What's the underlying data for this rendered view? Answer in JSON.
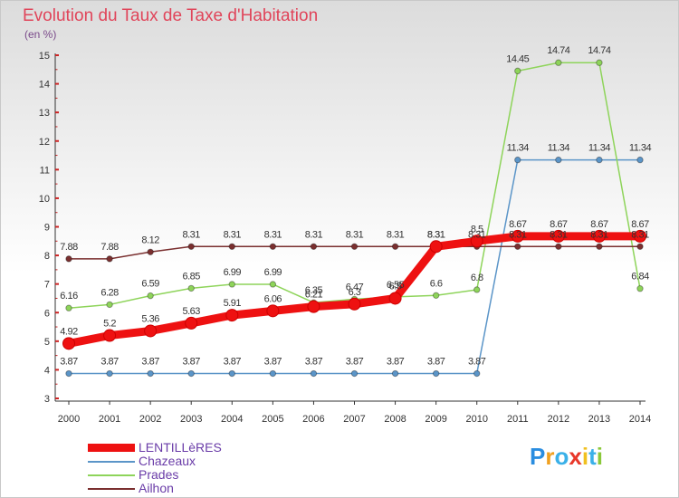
{
  "title": "Evolution du Taux de Taxe d'Habitation",
  "unit": "(en %)",
  "logo": "Proxiti",
  "chart_data": {
    "type": "line",
    "title": "Evolution du Taux de Taxe d'Habitation",
    "ylabel": "(en %)",
    "xlabel": "",
    "ylim": [
      3,
      15
    ],
    "yticks": [
      3,
      4,
      5,
      6,
      7,
      8,
      9,
      10,
      11,
      12,
      13,
      14,
      15
    ],
    "grid": false,
    "legend_position": "bottom-left",
    "x": [
      2000,
      2001,
      2002,
      2003,
      2004,
      2005,
      2006,
      2007,
      2008,
      2009,
      2010,
      2011,
      2012,
      2013,
      2014
    ],
    "series": [
      {
        "name": "LENTILLèRES",
        "color": "#ee1111",
        "emphasis": true,
        "values": [
          4.92,
          5.2,
          5.36,
          5.63,
          5.91,
          6.06,
          6.21,
          6.3,
          6.5,
          8.31,
          8.5,
          8.67,
          8.67,
          8.67,
          8.67
        ],
        "labels": [
          "4.92",
          "5.2",
          "5.36",
          "5.63",
          "5.91",
          "6.06",
          "6.21",
          "6.3",
          "6.5",
          "8.31",
          "8.5",
          "8.67",
          "8.67",
          "8.67",
          "8.67"
        ]
      },
      {
        "name": "Chazeaux",
        "color": "#5b95c8",
        "emphasis": false,
        "values": [
          3.87,
          3.87,
          3.87,
          3.87,
          3.87,
          3.87,
          3.87,
          3.87,
          3.87,
          3.87,
          3.87,
          11.34,
          11.34,
          11.34,
          11.34
        ],
        "labels": [
          "3.87",
          "3.87",
          "3.87",
          "3.87",
          "3.87",
          "3.87",
          "3.87",
          "3.87",
          "3.87",
          "3.87",
          "3.87",
          "11.34",
          "11.34",
          "11.34",
          "11.34"
        ]
      },
      {
        "name": "Prades",
        "color": "#8ed45a",
        "emphasis": false,
        "values": [
          6.16,
          6.28,
          6.59,
          6.85,
          6.99,
          6.99,
          6.35,
          6.47,
          6.55,
          6.6,
          6.8,
          14.45,
          14.74,
          14.74,
          6.84
        ],
        "labels": [
          "6.16",
          "6.28",
          "6.59",
          "6.85",
          "6.99",
          "6.99",
          "6.35",
          "6.47",
          "6.55",
          "6.6",
          "6.8",
          "14.45",
          "14.74",
          "14.74",
          "6.84"
        ]
      },
      {
        "name": "Ailhon",
        "color": "#7a2f2f",
        "emphasis": false,
        "values": [
          7.88,
          7.88,
          8.12,
          8.31,
          8.31,
          8.31,
          8.31,
          8.31,
          8.31,
          8.31,
          8.31,
          8.31,
          8.31,
          8.31,
          8.31
        ],
        "labels": [
          "7.88",
          "7.88",
          "8.12",
          "8.31",
          "8.31",
          "8.31",
          "8.31",
          "8.31",
          "8.31",
          "8.31",
          "8.31",
          "8.31",
          "8.31",
          "8.31",
          "8.31"
        ]
      }
    ]
  }
}
